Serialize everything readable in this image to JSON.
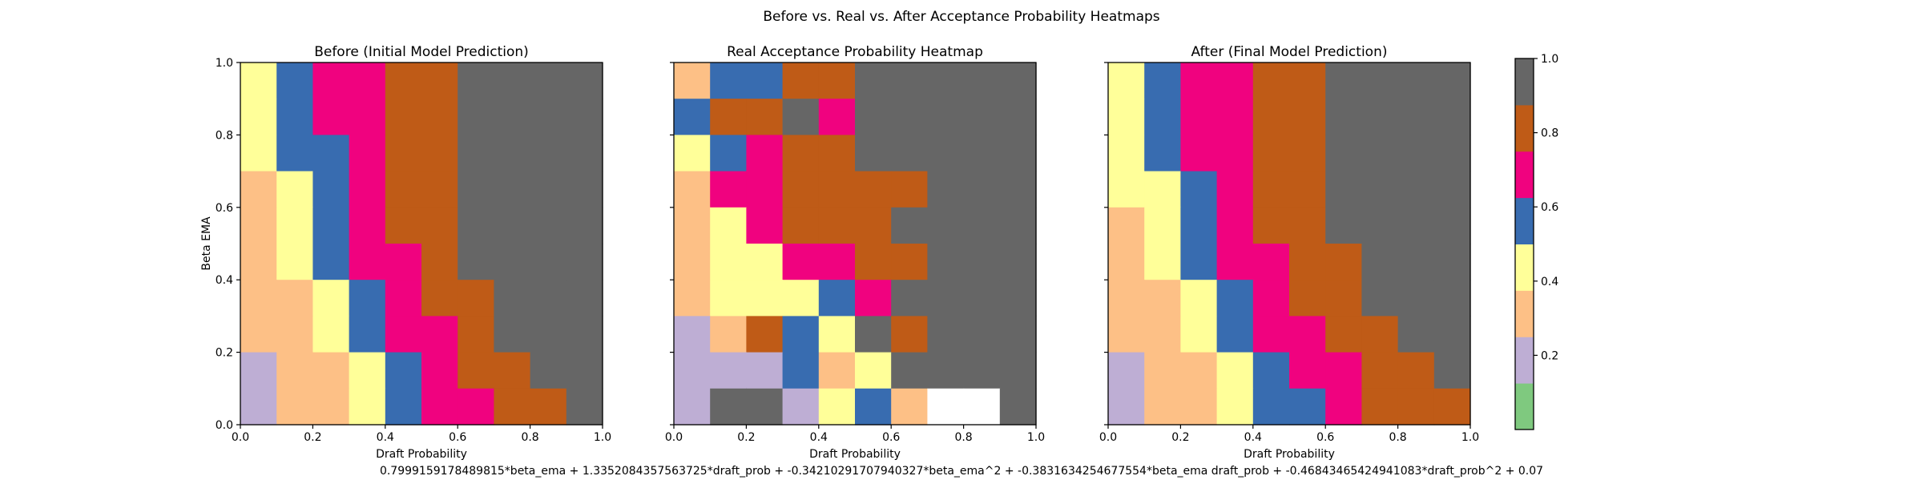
{
  "figure": {
    "suptitle": "Before vs. Real vs. After Acceptance Probability Heatmaps",
    "footer_formula": "0.7999159178489815*beta_ema + 1.3352084357563725*draft_prob + -0.34210291707940327*beta_ema^2 + -0.3831634254677554*beta_ema draft_prob + -0.46843465424941083*draft_prob^2 + 0.07"
  },
  "palette": [
    "#7fc97f",
    "#beaed4",
    "#fdc086",
    "#ffff99",
    "#386cb0",
    "#f0027f",
    "#bf5b17",
    "#666666"
  ],
  "chart_data": [
    {
      "type": "heatmap",
      "title": "Before (Initial Model Prediction)",
      "xlabel": "Draft Probability",
      "ylabel": "Beta EMA",
      "xlim": [
        0,
        1
      ],
      "ylim": [
        0,
        1
      ],
      "x_ticks": [
        "0.0",
        "0.2",
        "0.4",
        "0.6",
        "0.8",
        "1.0"
      ],
      "y_ticks": [
        "0.0",
        "0.2",
        "0.4",
        "0.6",
        "0.8",
        "1.0"
      ],
      "grid": false,
      "rows_top_to_bottom": [
        [
          0.45,
          0.55,
          0.65,
          0.65,
          0.75,
          0.75,
          0.95,
          0.95,
          0.95,
          0.95
        ],
        [
          0.45,
          0.55,
          0.65,
          0.65,
          0.75,
          0.75,
          0.95,
          0.95,
          0.95,
          0.95
        ],
        [
          0.45,
          0.55,
          0.55,
          0.65,
          0.75,
          0.75,
          0.95,
          0.95,
          0.95,
          0.95
        ],
        [
          0.35,
          0.45,
          0.55,
          0.65,
          0.75,
          0.75,
          0.95,
          0.95,
          0.95,
          0.95
        ],
        [
          0.35,
          0.45,
          0.55,
          0.65,
          0.75,
          0.75,
          0.95,
          0.95,
          0.95,
          0.95
        ],
        [
          0.35,
          0.45,
          0.55,
          0.65,
          0.65,
          0.75,
          0.95,
          0.95,
          0.95,
          0.95
        ],
        [
          0.25,
          0.35,
          0.45,
          0.55,
          0.65,
          0.75,
          0.75,
          0.95,
          0.95,
          0.95
        ],
        [
          0.25,
          0.35,
          0.45,
          0.55,
          0.65,
          0.65,
          0.75,
          0.95,
          0.95,
          0.95
        ],
        [
          0.15,
          0.25,
          0.35,
          0.45,
          0.55,
          0.65,
          0.75,
          0.75,
          0.95,
          0.95
        ],
        [
          0.15,
          0.25,
          0.35,
          0.45,
          0.55,
          0.65,
          0.65,
          0.75,
          0.75,
          0.95
        ]
      ]
    },
    {
      "type": "heatmap",
      "title": "Real Acceptance Probability Heatmap",
      "xlabel": "Draft Probability",
      "ylabel": "",
      "xlim": [
        0,
        1
      ],
      "ylim": [
        0,
        1
      ],
      "x_ticks": [
        "0.0",
        "0.2",
        "0.4",
        "0.6",
        "0.8",
        "1.0"
      ],
      "y_ticks": [],
      "grid": false,
      "missing_value_color": "#ffffff",
      "rows_top_to_bottom": [
        [
          0.35,
          0.55,
          0.55,
          0.75,
          0.75,
          0.95,
          0.95,
          0.95,
          0.95,
          0.95
        ],
        [
          0.55,
          0.75,
          0.75,
          0.95,
          0.65,
          0.95,
          0.95,
          0.95,
          0.95,
          0.95
        ],
        [
          0.45,
          0.55,
          0.65,
          0.75,
          0.75,
          0.95,
          0.95,
          0.95,
          0.95,
          0.95
        ],
        [
          0.35,
          0.65,
          0.65,
          0.75,
          0.75,
          0.75,
          0.75,
          0.95,
          0.95,
          0.95
        ],
        [
          0.35,
          0.45,
          0.65,
          0.75,
          0.75,
          0.75,
          0.95,
          0.95,
          0.95,
          0.95
        ],
        [
          0.35,
          0.45,
          0.45,
          0.65,
          0.65,
          0.75,
          0.75,
          0.95,
          0.95,
          0.95
        ],
        [
          0.25,
          0.45,
          0.45,
          0.45,
          0.55,
          0.65,
          0.95,
          0.95,
          0.95,
          0.95
        ],
        [
          0.15,
          0.25,
          0.75,
          0.55,
          0.45,
          0.95,
          0.75,
          0.95,
          0.95,
          0.95
        ],
        [
          0.15,
          0.15,
          0.15,
          0.55,
          0.35,
          0.45,
          0.95,
          0.95,
          0.95,
          0.95
        ],
        [
          0.15,
          0.95,
          0.95,
          0.15,
          0.45,
          0.55,
          0.25,
          null,
          null,
          0.95
        ]
      ]
    },
    {
      "type": "heatmap",
      "title": "After (Final Model Prediction)",
      "xlabel": "Draft Probability",
      "ylabel": "",
      "xlim": [
        0,
        1
      ],
      "ylim": [
        0,
        1
      ],
      "x_ticks": [
        "0.0",
        "0.2",
        "0.4",
        "0.6",
        "0.8",
        "1.0"
      ],
      "y_ticks": [],
      "grid": false,
      "rows_top_to_bottom": [
        [
          0.45,
          0.55,
          0.65,
          0.65,
          0.75,
          0.75,
          0.95,
          0.95,
          0.95,
          0.95
        ],
        [
          0.45,
          0.55,
          0.65,
          0.65,
          0.75,
          0.75,
          0.95,
          0.95,
          0.95,
          0.95
        ],
        [
          0.45,
          0.55,
          0.65,
          0.65,
          0.75,
          0.75,
          0.95,
          0.95,
          0.95,
          0.95
        ],
        [
          0.45,
          0.45,
          0.55,
          0.65,
          0.75,
          0.75,
          0.95,
          0.95,
          0.95,
          0.95
        ],
        [
          0.35,
          0.45,
          0.55,
          0.65,
          0.75,
          0.75,
          0.95,
          0.95,
          0.95,
          0.95
        ],
        [
          0.35,
          0.45,
          0.55,
          0.65,
          0.65,
          0.75,
          0.75,
          0.95,
          0.95,
          0.95
        ],
        [
          0.25,
          0.35,
          0.45,
          0.55,
          0.65,
          0.75,
          0.75,
          0.95,
          0.95,
          0.95
        ],
        [
          0.25,
          0.35,
          0.45,
          0.55,
          0.65,
          0.65,
          0.75,
          0.75,
          0.95,
          0.95
        ],
        [
          0.15,
          0.25,
          0.35,
          0.45,
          0.55,
          0.65,
          0.65,
          0.75,
          0.75,
          0.95
        ],
        [
          0.15,
          0.25,
          0.35,
          0.45,
          0.55,
          0.55,
          0.65,
          0.75,
          0.75,
          0.75
        ]
      ]
    }
  ],
  "colorbar": {
    "range": [
      0,
      1
    ],
    "tick_values": [
      0.2,
      0.4,
      0.6,
      0.8,
      1.0
    ],
    "tick_labels": [
      "0.2",
      "0.4",
      "0.6",
      "0.8",
      "1.0"
    ]
  }
}
